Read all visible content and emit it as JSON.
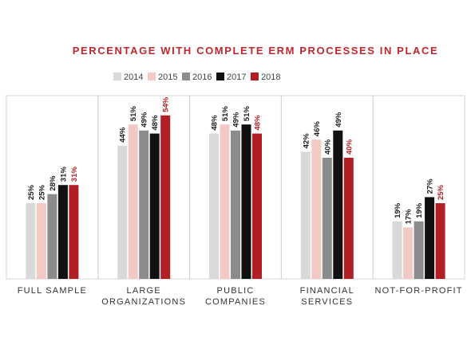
{
  "chart_data": {
    "type": "bar",
    "title": "PERCENTAGE WITH COMPLETE ERM PROCESSES IN PLACE",
    "title_color": "#c0272d",
    "categories": [
      [
        "FULL SAMPLE"
      ],
      [
        "LARGE",
        "ORGANIZATIONS"
      ],
      [
        "PUBLIC",
        "COMPANIES"
      ],
      [
        "FINANCIAL",
        "SERVICES"
      ],
      [
        "NOT-FOR-PROFIT"
      ]
    ],
    "series": [
      {
        "name": "2014",
        "color": "#d9d9d9",
        "label_color": "#1a1a1a",
        "values": [
          25,
          44,
          48,
          42,
          19
        ]
      },
      {
        "name": "2015",
        "color": "#f2c9c4",
        "label_color": "#1a1a1a",
        "values": [
          25,
          51,
          51,
          46,
          17
        ]
      },
      {
        "name": "2016",
        "color": "#8c8c8c",
        "label_color": "#1a1a1a",
        "values": [
          28,
          49,
          49,
          40,
          19
        ]
      },
      {
        "name": "2017",
        "color": "#111111",
        "label_color": "#1a1a1a",
        "values": [
          31,
          48,
          51,
          49,
          27
        ]
      },
      {
        "name": "2018",
        "color": "#b11f24",
        "label_color": "#1a1a1a",
        "values": [
          31,
          54,
          48,
          40,
          25
        ]
      }
    ],
    "value_suffix": "%",
    "ylim": [
      0,
      60
    ],
    "grid": false,
    "legend_position": "top"
  }
}
